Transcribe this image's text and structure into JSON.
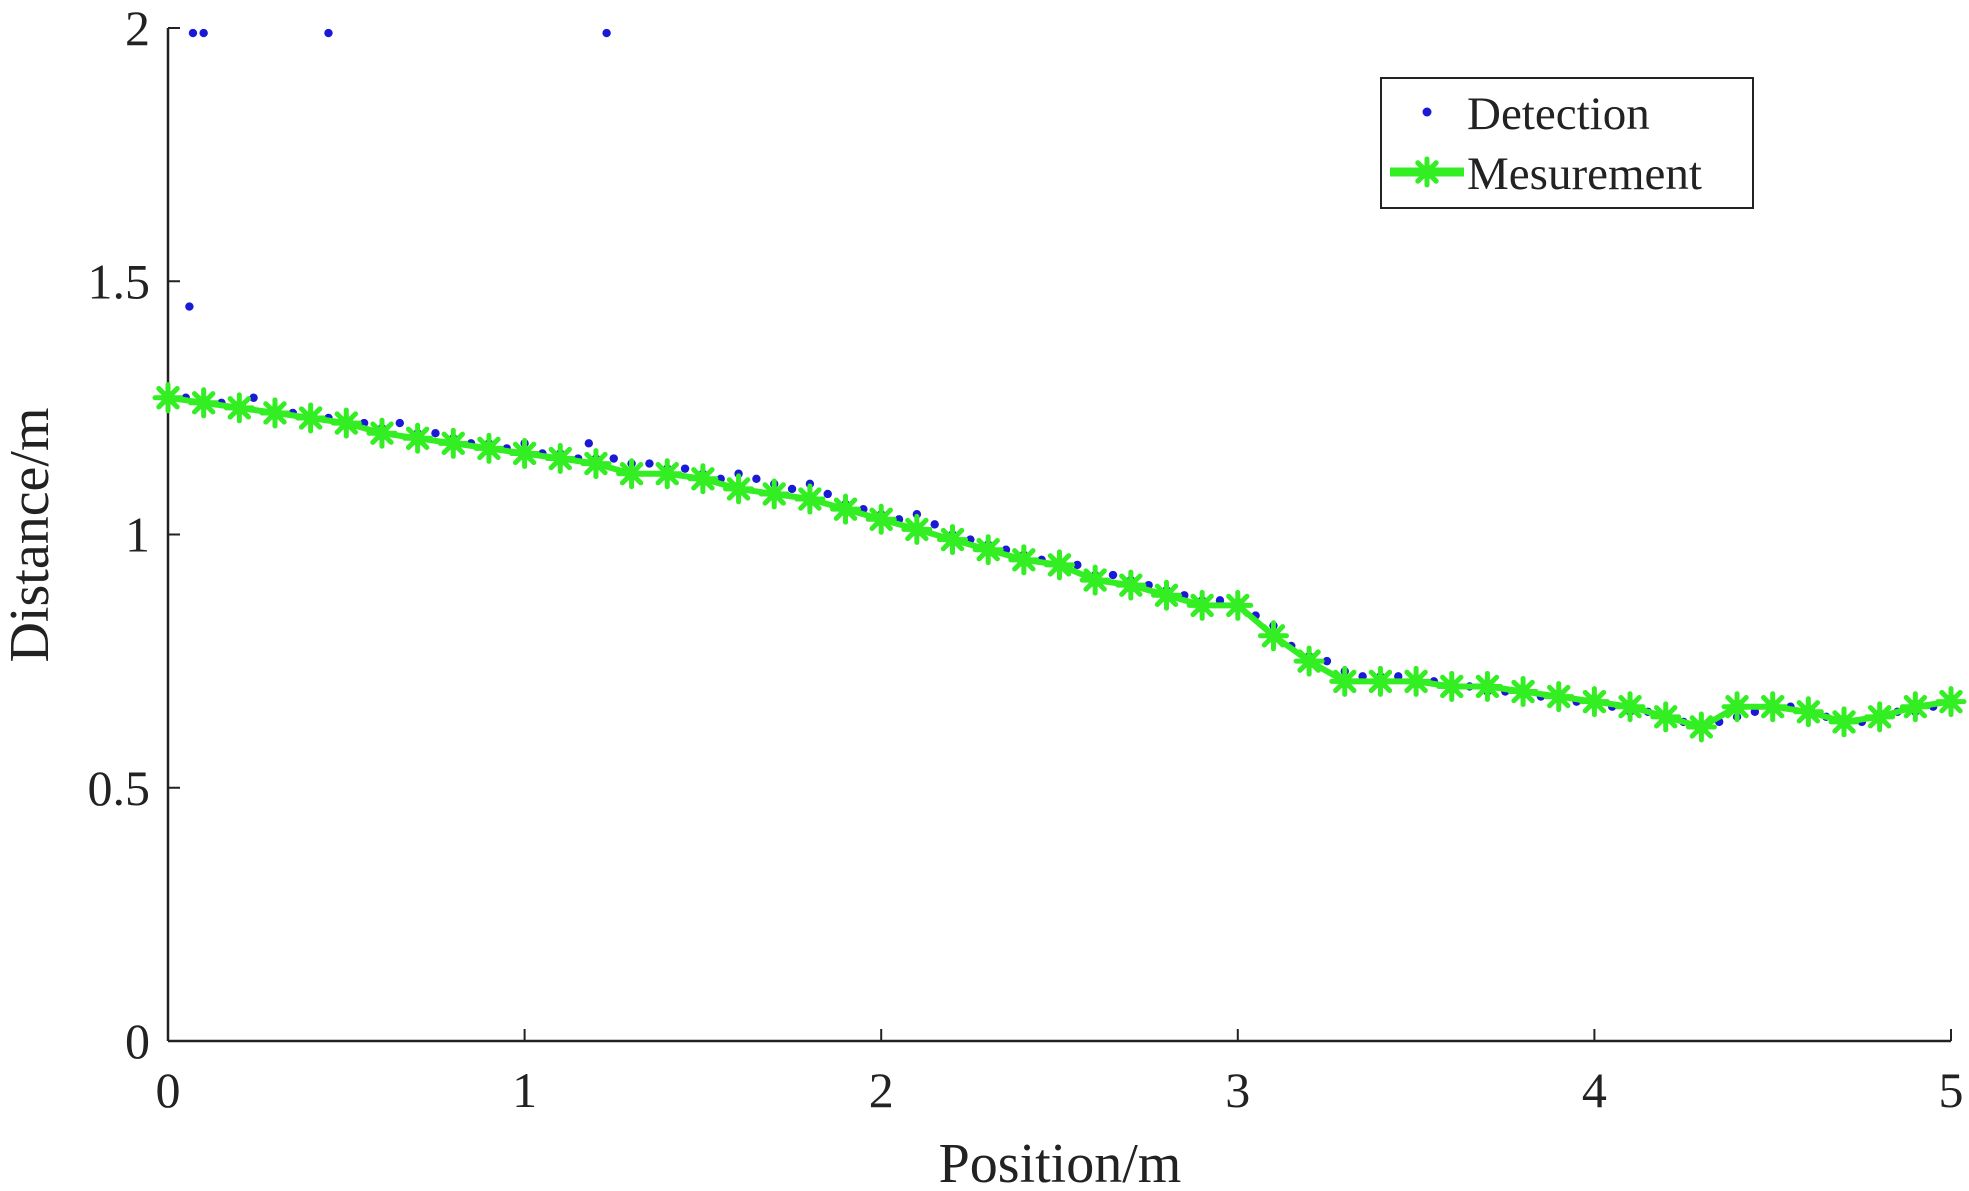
{
  "chart_data": {
    "type": "scatter",
    "title": "",
    "xlabel": "Position/m",
    "ylabel": "Distance/m",
    "xlim": [
      0,
      5
    ],
    "ylim": [
      0,
      2
    ],
    "xticks": [
      "0",
      "1",
      "2",
      "3",
      "4",
      "5"
    ],
    "yticks": [
      "0",
      "0.5",
      "1",
      "1.5",
      "2"
    ],
    "grid": false,
    "legend_position": "top-right",
    "colors": {
      "detection": "#1a1ad6",
      "measurement": "#33ee22"
    },
    "series": [
      {
        "name": "Detection",
        "style": "dots",
        "x": [
          0.07,
          0.1,
          0.45,
          1.23,
          0.06,
          0.0,
          0.05,
          0.1,
          0.15,
          0.2,
          0.24,
          0.3,
          0.35,
          0.4,
          0.45,
          0.5,
          0.55,
          0.6,
          0.65,
          0.7,
          0.75,
          0.8,
          0.85,
          0.9,
          0.95,
          1.0,
          1.05,
          1.1,
          1.15,
          1.18,
          1.2,
          1.25,
          1.3,
          1.35,
          1.4,
          1.45,
          1.5,
          1.55,
          1.6,
          1.65,
          1.7,
          1.75,
          1.8,
          1.85,
          1.9,
          1.95,
          2.0,
          2.05,
          2.1,
          2.15,
          2.2,
          2.25,
          2.3,
          2.35,
          2.4,
          2.45,
          2.5,
          2.55,
          2.6,
          2.65,
          2.7,
          2.75,
          2.8,
          2.85,
          2.9,
          2.95,
          3.0,
          3.05,
          3.1,
          3.15,
          3.2,
          3.25,
          3.3,
          3.35,
          3.4,
          3.45,
          3.5,
          3.55,
          3.6,
          3.65,
          3.7,
          3.75,
          3.8,
          3.85,
          3.9,
          3.95,
          4.0,
          4.05,
          4.1,
          4.15,
          4.2,
          4.25,
          4.3,
          4.35,
          4.4,
          4.45,
          4.5,
          4.55,
          4.6,
          4.65,
          4.7,
          4.75,
          4.8,
          4.85,
          4.9,
          4.95,
          5.0
        ],
        "y": [
          1.99,
          1.99,
          1.99,
          1.99,
          1.45,
          1.27,
          1.27,
          1.26,
          1.26,
          1.25,
          1.27,
          1.24,
          1.24,
          1.23,
          1.23,
          1.22,
          1.22,
          1.21,
          1.22,
          1.2,
          1.2,
          1.19,
          1.18,
          1.18,
          1.17,
          1.18,
          1.16,
          1.16,
          1.15,
          1.18,
          1.15,
          1.15,
          1.14,
          1.14,
          1.13,
          1.13,
          1.12,
          1.11,
          1.12,
          1.11,
          1.1,
          1.09,
          1.1,
          1.08,
          1.06,
          1.05,
          1.04,
          1.03,
          1.04,
          1.02,
          1.0,
          0.99,
          0.98,
          0.97,
          0.96,
          0.95,
          0.94,
          0.94,
          0.92,
          0.92,
          0.91,
          0.9,
          0.89,
          0.88,
          0.87,
          0.87,
          0.86,
          0.84,
          0.82,
          0.78,
          0.76,
          0.75,
          0.73,
          0.72,
          0.72,
          0.72,
          0.71,
          0.71,
          0.7,
          0.7,
          0.69,
          0.69,
          0.69,
          0.68,
          0.68,
          0.67,
          0.67,
          0.66,
          0.65,
          0.65,
          0.64,
          0.63,
          0.62,
          0.63,
          0.64,
          0.65,
          0.66,
          0.66,
          0.65,
          0.64,
          0.63,
          0.63,
          0.64,
          0.65,
          0.65,
          0.66,
          0.67
        ]
      },
      {
        "name": "Mesurement",
        "style": "line-star",
        "x": [
          0.0,
          0.1,
          0.2,
          0.3,
          0.4,
          0.5,
          0.6,
          0.7,
          0.8,
          0.9,
          1.0,
          1.1,
          1.2,
          1.3,
          1.4,
          1.5,
          1.6,
          1.7,
          1.8,
          1.9,
          2.0,
          2.1,
          2.2,
          2.3,
          2.4,
          2.5,
          2.6,
          2.7,
          2.8,
          2.9,
          3.0,
          3.1,
          3.2,
          3.3,
          3.4,
          3.5,
          3.6,
          3.7,
          3.8,
          3.9,
          4.0,
          4.1,
          4.2,
          4.3,
          4.4,
          4.5,
          4.6,
          4.7,
          4.8,
          4.9,
          5.0
        ],
        "y": [
          1.27,
          1.26,
          1.25,
          1.24,
          1.23,
          1.22,
          1.2,
          1.19,
          1.18,
          1.17,
          1.16,
          1.15,
          1.14,
          1.12,
          1.12,
          1.11,
          1.09,
          1.08,
          1.07,
          1.05,
          1.03,
          1.01,
          0.99,
          0.97,
          0.95,
          0.94,
          0.91,
          0.9,
          0.88,
          0.86,
          0.86,
          0.8,
          0.75,
          0.71,
          0.71,
          0.71,
          0.7,
          0.7,
          0.69,
          0.68,
          0.67,
          0.66,
          0.64,
          0.62,
          0.66,
          0.66,
          0.65,
          0.63,
          0.64,
          0.66,
          0.67
        ]
      }
    ]
  }
}
